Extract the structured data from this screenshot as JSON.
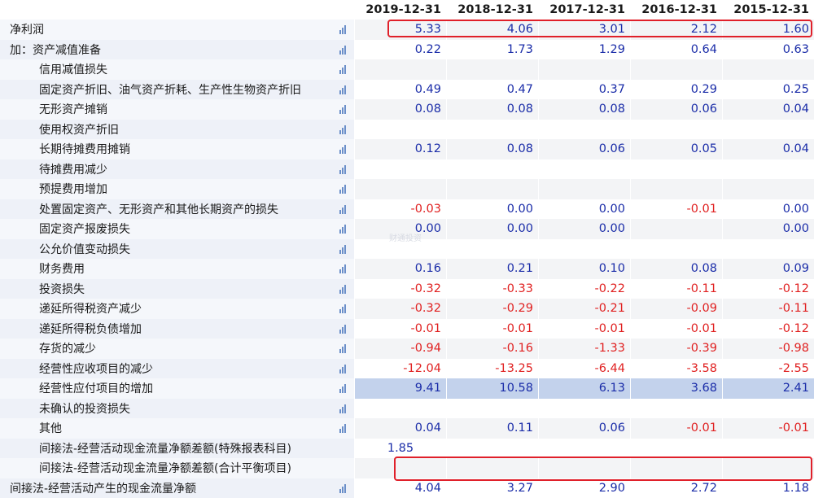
{
  "dates": [
    "2019-12-31",
    "2018-12-31",
    "2017-12-31",
    "2016-12-31",
    "2015-12-31"
  ],
  "rows": [
    {
      "label": "净利润",
      "indent": false,
      "values": [
        "5.33",
        "4.06",
        "3.01",
        "2.12",
        "1.60"
      ]
    },
    {
      "label": "加：资产减值准备",
      "indent": false,
      "values": [
        "0.22",
        "1.73",
        "1.29",
        "0.64",
        "0.63"
      ]
    },
    {
      "label": "信用减值损失",
      "indent": true,
      "values": [
        "",
        "",
        "",
        "",
        ""
      ]
    },
    {
      "label": "固定资产折旧、油气资产折耗、生产性生物资产折旧",
      "indent": true,
      "values": [
        "0.49",
        "0.47",
        "0.37",
        "0.29",
        "0.25"
      ]
    },
    {
      "label": "无形资产摊销",
      "indent": true,
      "values": [
        "0.08",
        "0.08",
        "0.08",
        "0.06",
        "0.04"
      ]
    },
    {
      "label": "使用权资产折旧",
      "indent": true,
      "values": [
        "",
        "",
        "",
        "",
        ""
      ]
    },
    {
      "label": "长期待摊费用摊销",
      "indent": true,
      "values": [
        "0.12",
        "0.08",
        "0.06",
        "0.05",
        "0.04"
      ]
    },
    {
      "label": "待摊费用减少",
      "indent": true,
      "values": [
        "",
        "",
        "",
        "",
        ""
      ]
    },
    {
      "label": "预提费用增加",
      "indent": true,
      "values": [
        "",
        "",
        "",
        "",
        ""
      ]
    },
    {
      "label": "处置固定资产、无形资产和其他长期资产的损失",
      "indent": true,
      "values": [
        "-0.03",
        "0.00",
        "0.00",
        "-0.01",
        "0.00"
      ]
    },
    {
      "label": "固定资产报废损失",
      "indent": true,
      "values": [
        "0.00",
        "0.00",
        "0.00",
        "",
        "0.00"
      ]
    },
    {
      "label": "公允价值变动损失",
      "indent": true,
      "values": [
        "",
        "",
        "",
        "",
        ""
      ]
    },
    {
      "label": "财务费用",
      "indent": true,
      "values": [
        "0.16",
        "0.21",
        "0.10",
        "0.08",
        "0.09"
      ]
    },
    {
      "label": "投资损失",
      "indent": true,
      "values": [
        "-0.32",
        "-0.33",
        "-0.22",
        "-0.11",
        "-0.12"
      ]
    },
    {
      "label": "递延所得税资产减少",
      "indent": true,
      "values": [
        "-0.32",
        "-0.29",
        "-0.21",
        "-0.09",
        "-0.11"
      ]
    },
    {
      "label": "递延所得税负债增加",
      "indent": true,
      "values": [
        "-0.01",
        "-0.01",
        "-0.01",
        "-0.01",
        "-0.12"
      ]
    },
    {
      "label": "存货的减少",
      "indent": true,
      "values": [
        "-0.94",
        "-0.16",
        "-1.33",
        "-0.39",
        "-0.98"
      ]
    },
    {
      "label": "经营性应收项目的减少",
      "indent": true,
      "values": [
        "-12.04",
        "-13.25",
        "-6.44",
        "-3.58",
        "-2.55"
      ]
    },
    {
      "label": "经营性应付项目的增加",
      "indent": true,
      "values": [
        "9.41",
        "10.58",
        "6.13",
        "3.68",
        "2.41"
      ],
      "highlight": true
    },
    {
      "label": "未确认的投资损失",
      "indent": true,
      "values": [
        "",
        "",
        "",
        "",
        ""
      ]
    },
    {
      "label": "其他",
      "indent": true,
      "values": [
        "0.04",
        "0.11",
        "0.06",
        "-0.01",
        "-0.01"
      ]
    },
    {
      "label": "间接法-经营活动现金流量净额差额(特殊报表科目)",
      "indent": true,
      "no_icon": true,
      "values": [
        "1.85",
        "",
        "",
        "",
        ""
      ],
      "center_first": true
    },
    {
      "label": "间接法-经营活动现金流量净额差额(合计平衡项目)",
      "indent": true,
      "no_icon": true,
      "values": [
        "",
        "",
        "",
        "",
        ""
      ]
    },
    {
      "label": "间接法-经营活动产生的现金流量净额",
      "indent": false,
      "values": [
        "4.04",
        "3.27",
        "2.90",
        "2.72",
        "1.18"
      ]
    }
  ],
  "watermark": "财通投资",
  "colors": {
    "positive": "#1a2ca8",
    "negative": "#e02020",
    "highlight_row": "#c3d2ec",
    "redbox": "#e0202a"
  }
}
